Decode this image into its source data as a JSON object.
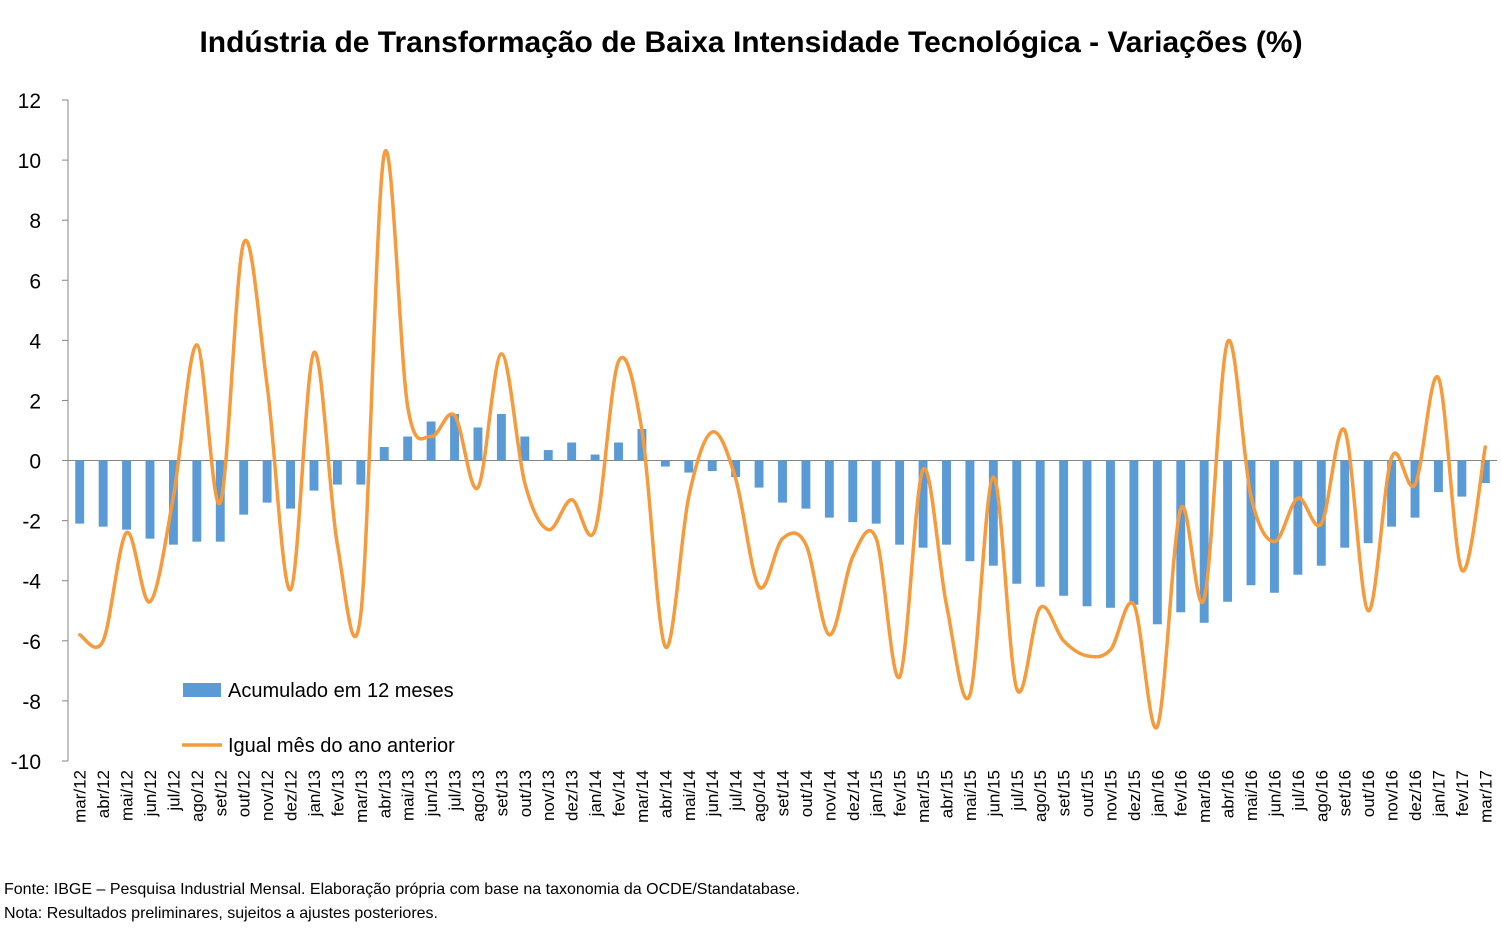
{
  "chart_data": {
    "type": "bar+line",
    "title": "Indústria de Transformação de Baixa Intensidade Tecnológica - Variações (%)",
    "xlabel": "",
    "ylabel": "",
    "ylim": [
      -10,
      12
    ],
    "yticks": [
      12,
      10,
      8,
      6,
      4,
      2,
      0,
      -2,
      -4,
      -6,
      -8,
      -10
    ],
    "grid": false,
    "legend_position": "bottom-left",
    "categories": [
      "mar/12",
      "abr/12",
      "mai/12",
      "jun/12",
      "jul/12",
      "ago/12",
      "set/12",
      "out/12",
      "nov/12",
      "dez/12",
      "jan/13",
      "fev/13",
      "mar/13",
      "abr/13",
      "mai/13",
      "jun/13",
      "jul/13",
      "ago/13",
      "set/13",
      "out/13",
      "nov/13",
      "dez/13",
      "jan/14",
      "fev/14",
      "mar/14",
      "abr/14",
      "mai/14",
      "jun/14",
      "jul/14",
      "ago/14",
      "set/14",
      "out/14",
      "nov/14",
      "dez/14",
      "jan/15",
      "fev/15",
      "mar/15",
      "abr/15",
      "mai/15",
      "jun/15",
      "jul/15",
      "ago/15",
      "set/15",
      "out/15",
      "nov/15",
      "dez/15",
      "jan/16",
      "fev/16",
      "mar/16",
      "abr/16",
      "mai/16",
      "jun/16",
      "jul/16",
      "ago/16",
      "set/16",
      "out/16",
      "nov/16",
      "dez/16",
      "jan/17",
      "fev/17",
      "mar/17"
    ],
    "series": [
      {
        "name": "Acumulado em 12 meses",
        "type": "bar",
        "color": "#5B9BD5",
        "values": [
          -2.1,
          -2.2,
          -2.3,
          -2.6,
          -2.8,
          -2.7,
          -2.7,
          -1.8,
          -1.4,
          -1.6,
          -1.0,
          -0.8,
          -0.8,
          0.45,
          0.8,
          1.3,
          1.55,
          1.1,
          1.55,
          0.8,
          0.35,
          0.6,
          0.2,
          0.6,
          1.05,
          -0.2,
          -0.4,
          -0.35,
          -0.55,
          -0.9,
          -1.4,
          -1.6,
          -1.9,
          -2.05,
          -2.1,
          -2.8,
          -2.9,
          -2.8,
          -3.35,
          -3.5,
          -4.1,
          -4.2,
          -4.5,
          -4.85,
          -4.9,
          -4.8,
          -5.45,
          -5.05,
          -5.4,
          -4.7,
          -4.15,
          -4.4,
          -3.8,
          -3.5,
          -2.9,
          -2.75,
          -2.2,
          -1.9,
          -1.05,
          -1.2,
          -0.75
        ]
      },
      {
        "name": "Igual mês do ano anterior",
        "type": "line",
        "color": "#F79A3B",
        "values": [
          -5.8,
          -6.0,
          -2.4,
          -4.7,
          -1.2,
          3.85,
          -1.4,
          7.25,
          2.5,
          -4.3,
          3.6,
          -2.8,
          -5.1,
          10.2,
          1.8,
          0.8,
          1.5,
          -0.9,
          3.55,
          -0.75,
          -2.3,
          -1.3,
          -2.3,
          3.3,
          1.0,
          -6.2,
          -1.2,
          0.95,
          -0.6,
          -4.2,
          -2.6,
          -2.8,
          -5.8,
          -3.2,
          -2.6,
          -7.2,
          -0.3,
          -4.8,
          -7.8,
          -0.55,
          -7.6,
          -4.9,
          -6.0,
          -6.5,
          -6.3,
          -4.8,
          -8.85,
          -1.6,
          -4.6,
          3.95,
          -1.2,
          -2.7,
          -1.25,
          -2.1,
          1.0,
          -5.0,
          0.1,
          -0.8,
          2.75,
          -3.65,
          0.45
        ]
      }
    ]
  },
  "notes": {
    "source": "Fonte: IBGE – Pesquisa Industrial Mensal. Elaboração própria com base na taxonomia da OCDE/Standatabase.",
    "footnote": "Nota: Resultados preliminares, sujeitos a ajustes posteriores."
  }
}
